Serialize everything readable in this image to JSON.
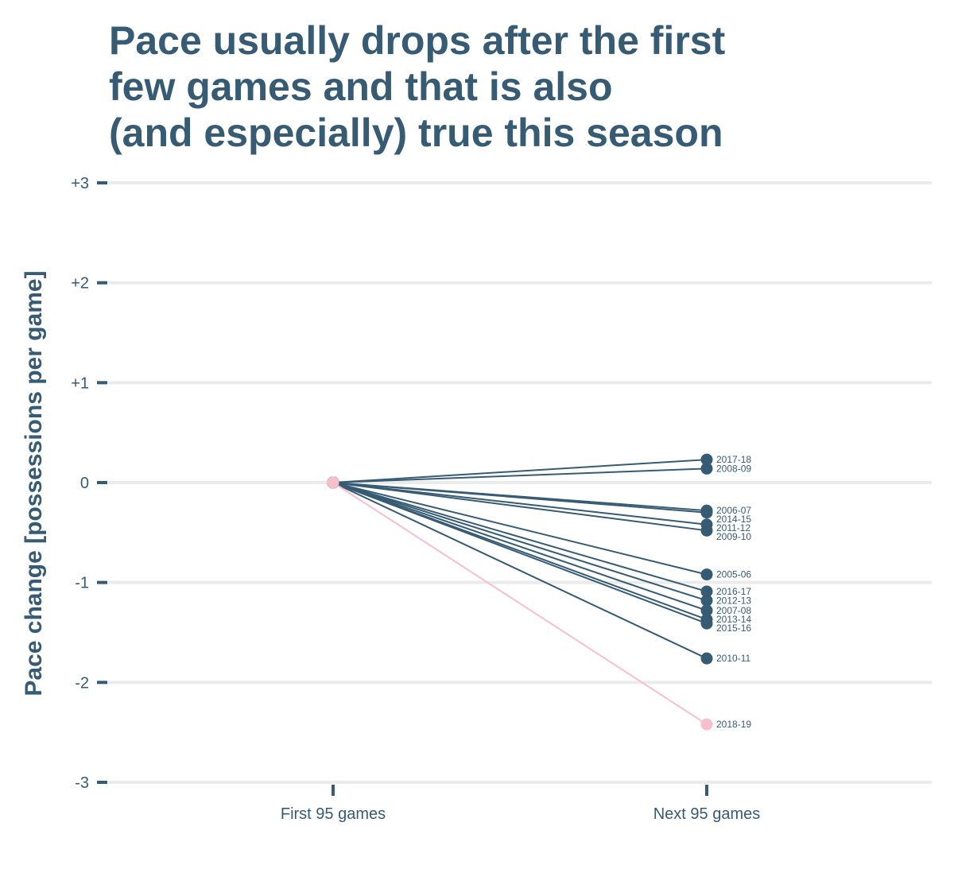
{
  "chart_data": {
    "type": "line",
    "title_lines": [
      "Pace usually drops after the first",
      "few games and that is also",
      "(and especially) true this season"
    ],
    "xlabel": "",
    "ylabel": "Pace change [possessions per game]",
    "categories": [
      "First 95 games",
      "Next 95 games"
    ],
    "ylim": [
      -3,
      3
    ],
    "yticks": [
      {
        "value": 3,
        "label": "+3"
      },
      {
        "value": 2,
        "label": "+2"
      },
      {
        "value": 1,
        "label": "+1"
      },
      {
        "value": 0,
        "label": "0"
      },
      {
        "value": -1,
        "label": "-1"
      },
      {
        "value": -2,
        "label": "-2"
      },
      {
        "value": -3,
        "label": "-3"
      }
    ],
    "grid": true,
    "colors": {
      "default": "#365b73",
      "highlight": "#f7bfcb",
      "grid": "#ebebeb",
      "text": "#365b73"
    },
    "series": [
      {
        "name": "2017-18",
        "values": [
          0,
          0.23
        ],
        "highlight": false
      },
      {
        "name": "2008-09",
        "values": [
          0,
          0.14
        ],
        "highlight": false
      },
      {
        "name": "2006-07",
        "values": [
          0,
          -0.28
        ],
        "highlight": false
      },
      {
        "name": "2014-15",
        "values": [
          0,
          -0.3
        ],
        "highlight": false
      },
      {
        "name": "2011-12",
        "values": [
          0,
          -0.42
        ],
        "highlight": false
      },
      {
        "name": "2009-10",
        "values": [
          0,
          -0.48
        ],
        "highlight": false
      },
      {
        "name": "2005-06",
        "values": [
          0,
          -0.92
        ],
        "highlight": false
      },
      {
        "name": "2016-17",
        "values": [
          0,
          -1.09
        ],
        "highlight": false
      },
      {
        "name": "2012-13",
        "values": [
          0,
          -1.18
        ],
        "highlight": false
      },
      {
        "name": "2007-08",
        "values": [
          0,
          -1.28
        ],
        "highlight": false
      },
      {
        "name": "2013-14",
        "values": [
          0,
          -1.37
        ],
        "highlight": false
      },
      {
        "name": "2015-16",
        "values": [
          0,
          -1.41
        ],
        "highlight": false
      },
      {
        "name": "2010-11",
        "values": [
          0,
          -1.76
        ],
        "highlight": false
      },
      {
        "name": "2018-19",
        "values": [
          0,
          -2.42
        ],
        "highlight": true
      }
    ]
  }
}
